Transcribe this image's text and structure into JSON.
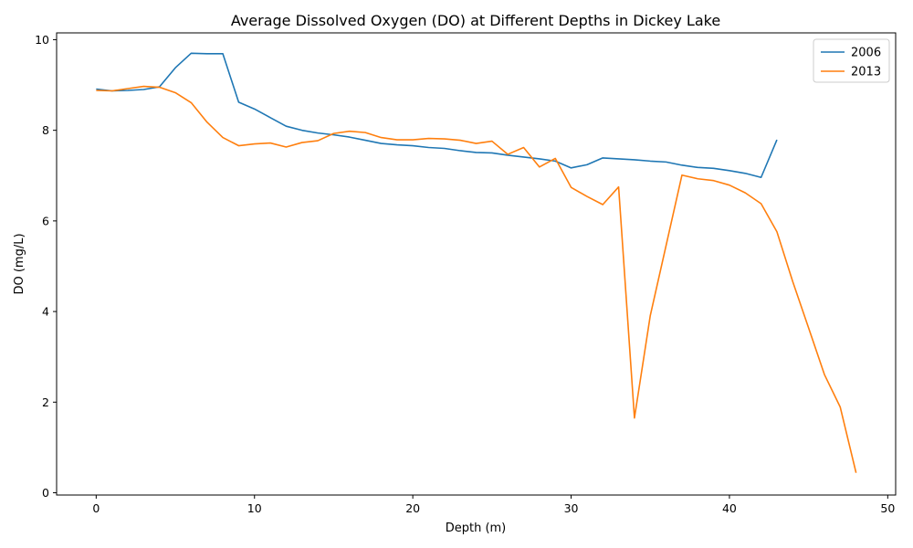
{
  "chart_data": {
    "type": "line",
    "title": "Average Dissolved Oxygen (DO) at Different Depths in Dickey Lake",
    "xlabel": "Depth (m)",
    "ylabel": "DO (mg/L)",
    "xlim": [
      -2.5,
      50.5
    ],
    "ylim": [
      -0.05,
      10.15
    ],
    "xticks": [
      0,
      10,
      20,
      30,
      40,
      50
    ],
    "yticks": [
      0,
      2,
      4,
      6,
      8,
      10
    ],
    "grid": false,
    "legend": "top-right",
    "series": [
      {
        "name": "2006",
        "color": "#1f77b4",
        "x": [
          0,
          1,
          2,
          3,
          4,
          5,
          6,
          7,
          8,
          9,
          10,
          11,
          12,
          13,
          14,
          15,
          16,
          17,
          18,
          19,
          20,
          21,
          22,
          23,
          24,
          25,
          26,
          27,
          28,
          29,
          30,
          31,
          32,
          33,
          34,
          35,
          36,
          37,
          38,
          39,
          40,
          41,
          42,
          43
        ],
        "y": [
          8.91,
          8.87,
          8.88,
          8.9,
          8.96,
          9.38,
          9.7,
          9.69,
          9.69,
          8.62,
          8.47,
          8.28,
          8.09,
          8.0,
          7.94,
          7.9,
          7.85,
          7.78,
          7.71,
          7.68,
          7.66,
          7.62,
          7.6,
          7.55,
          7.51,
          7.5,
          7.45,
          7.41,
          7.37,
          7.32,
          7.17,
          7.24,
          7.39,
          7.37,
          7.35,
          7.32,
          7.3,
          7.23,
          7.18,
          7.16,
          7.11,
          7.05,
          6.96,
          7.79
        ]
      },
      {
        "name": "2013",
        "color": "#ff7f0e",
        "x": [
          0,
          1,
          2,
          3,
          4,
          5,
          6,
          7,
          8,
          9,
          10,
          11,
          12,
          13,
          14,
          15,
          16,
          17,
          18,
          19,
          20,
          21,
          22,
          23,
          24,
          25,
          26,
          27,
          28,
          29,
          30,
          31,
          32,
          33,
          34,
          35,
          36,
          37,
          38,
          39,
          40,
          41,
          42,
          43,
          44,
          45,
          46,
          47,
          48
        ],
        "y": [
          8.88,
          8.87,
          8.92,
          8.97,
          8.95,
          8.83,
          8.61,
          8.18,
          7.84,
          7.66,
          7.7,
          7.72,
          7.63,
          7.73,
          7.77,
          7.93,
          7.98,
          7.95,
          7.84,
          7.79,
          7.79,
          7.82,
          7.81,
          7.78,
          7.71,
          7.76,
          7.47,
          7.62,
          7.19,
          7.38,
          6.74,
          6.54,
          6.36,
          6.75,
          1.65,
          3.91,
          5.46,
          7.01,
          6.93,
          6.89,
          6.79,
          6.62,
          6.38,
          5.76,
          4.66,
          3.64,
          2.61,
          1.89,
          0.44
        ]
      }
    ]
  }
}
